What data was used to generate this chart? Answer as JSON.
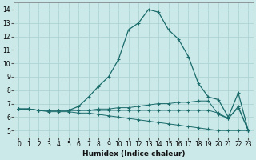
{
  "xlabel": "Humidex (Indice chaleur)",
  "xlim": [
    -0.5,
    23.5
  ],
  "ylim": [
    4.5,
    14.5
  ],
  "yticks": [
    5,
    6,
    7,
    8,
    9,
    10,
    11,
    12,
    13,
    14
  ],
  "xticks": [
    0,
    1,
    2,
    3,
    4,
    5,
    6,
    7,
    8,
    9,
    10,
    11,
    12,
    13,
    14,
    15,
    16,
    17,
    18,
    19,
    20,
    21,
    22,
    23
  ],
  "bg_color": "#cce9e9",
  "grid_color": "#aed4d4",
  "line_color": "#1a6b6b",
  "series": [
    [
      6.6,
      6.6,
      6.5,
      6.5,
      6.5,
      6.5,
      6.8,
      7.5,
      8.3,
      9.0,
      10.3,
      12.5,
      13.0,
      14.0,
      13.8,
      12.5,
      11.8,
      10.5,
      8.5,
      7.5,
      7.3,
      6.0,
      7.8,
      5.0
    ],
    [
      6.6,
      6.6,
      6.5,
      6.5,
      6.5,
      6.5,
      6.5,
      6.5,
      6.6,
      6.6,
      6.7,
      6.7,
      6.8,
      6.9,
      7.0,
      7.0,
      7.1,
      7.1,
      7.2,
      7.2,
      6.2,
      5.9,
      6.8,
      5.0
    ],
    [
      6.6,
      6.6,
      6.5,
      6.4,
      6.4,
      6.4,
      6.3,
      6.3,
      6.2,
      6.1,
      6.0,
      5.9,
      5.8,
      5.7,
      5.6,
      5.5,
      5.4,
      5.3,
      5.2,
      5.1,
      5.0,
      5.0,
      5.0,
      5.0
    ],
    [
      6.6,
      6.6,
      6.5,
      6.5,
      6.5,
      6.5,
      6.5,
      6.5,
      6.5,
      6.5,
      6.5,
      6.5,
      6.5,
      6.5,
      6.5,
      6.5,
      6.5,
      6.5,
      6.5,
      6.5,
      6.3,
      5.9,
      6.7,
      5.0
    ]
  ]
}
